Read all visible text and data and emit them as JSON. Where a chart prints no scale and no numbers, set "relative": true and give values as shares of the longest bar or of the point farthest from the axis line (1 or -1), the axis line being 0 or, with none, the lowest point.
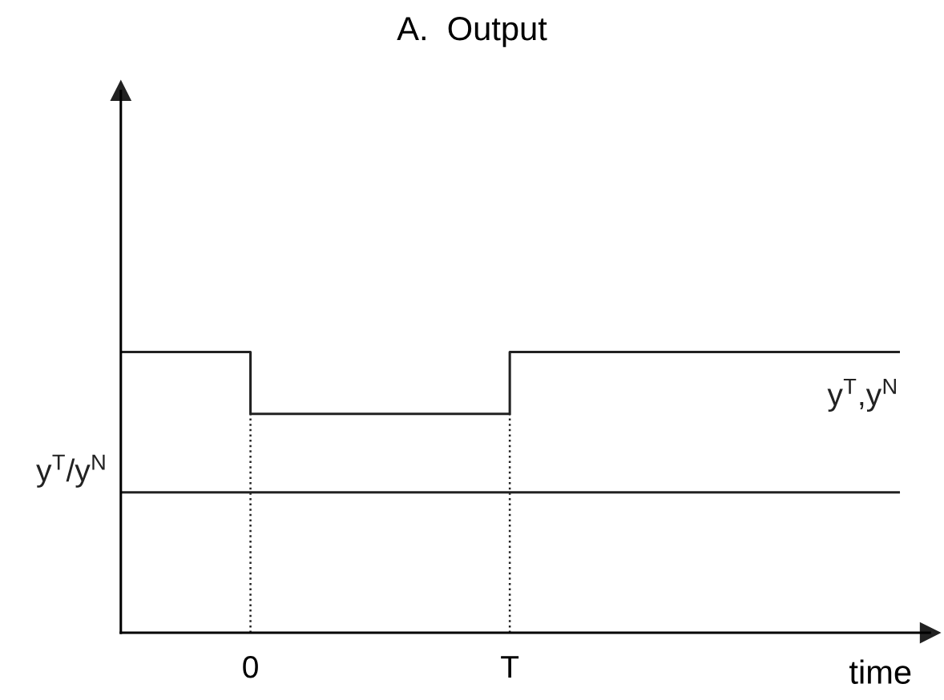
{
  "chart_data": {
    "type": "step",
    "title": "A.  Output",
    "xlabel": "time",
    "relative": true,
    "legend": false,
    "grid": false,
    "categories": [
      null,
      "0",
      null,
      "T",
      null,
      null,
      null
    ],
    "series": [
      {
        "name": "y$^{T}$,y$^{N}$",
        "color": "#222222",
        "values": [
          1,
          0.78,
          0.78,
          1,
          1,
          1,
          1
        ]
      },
      {
        "name": "y$^{T}$/y$^{N}$",
        "color": "#222222",
        "type": "line",
        "values": [
          0.5,
          0.5,
          0.5,
          0.5,
          0.5,
          0.5,
          0.5
        ]
      }
    ],
    "ref_lines": [
      {
        "axis": "x",
        "value": "0",
        "color": "#222222",
        "line_style": "dotted"
      },
      {
        "axis": "x",
        "value": "T",
        "color": "#222222",
        "line_style": "dotted"
      }
    ]
  }
}
